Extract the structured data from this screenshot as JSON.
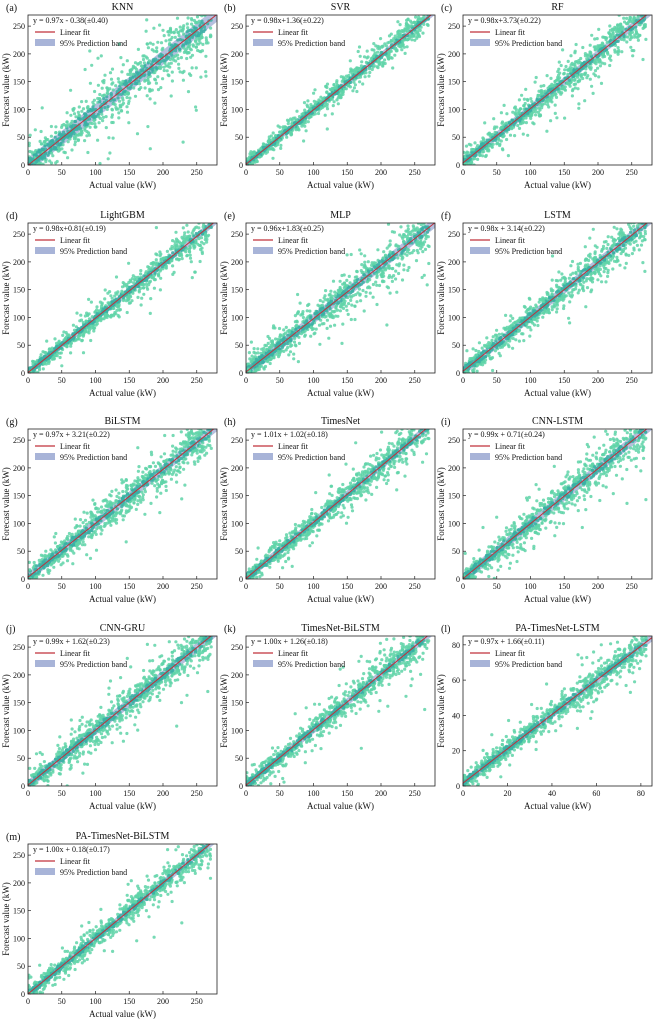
{
  "figure": {
    "colors": {
      "points": "#5fd3a8",
      "points_dense": "#3ab0a4",
      "fit_line": "#c0303a",
      "band": "#a8b4d8"
    },
    "legend_fit": "Linear fit",
    "legend_band": "95% Prediction band",
    "xlabel": "Actual value (kW)",
    "ylabel": "Forecast value (kW)"
  },
  "chart_data": [
    {
      "type": "scatter",
      "panel": "(a)",
      "title": "KNN",
      "equation": "y = 0.97x - 0.38(±0.40)",
      "slope": 0.97,
      "intercept": -0.38,
      "spread": 24,
      "xlim": [
        0,
        280
      ],
      "ylim": [
        0,
        270
      ],
      "xticks": [
        0,
        50,
        100,
        150,
        200,
        250
      ],
      "yticks": [
        0,
        50,
        100,
        150,
        200,
        250
      ],
      "xlabel": "Actual value (kW)",
      "ylabel": "Forecast value (kW)"
    },
    {
      "type": "scatter",
      "panel": "(b)",
      "title": "SVR",
      "equation": "y = 0.98x+1.36(±0.22)",
      "slope": 0.98,
      "intercept": 1.36,
      "spread": 10,
      "xlim": [
        0,
        280
      ],
      "ylim": [
        0,
        270
      ],
      "xticks": [
        0,
        50,
        100,
        150,
        200,
        250
      ],
      "yticks": [
        0,
        50,
        100,
        150,
        200,
        250
      ],
      "xlabel": "Actual value (kW)",
      "ylabel": "Forecast value (kW)"
    },
    {
      "type": "scatter",
      "panel": "(c)",
      "title": "RF",
      "equation": "y = 0.98x+3.73(±0.22)",
      "slope": 0.98,
      "intercept": 3.73,
      "spread": 14,
      "xlim": [
        0,
        280
      ],
      "ylim": [
        0,
        270
      ],
      "xticks": [
        0,
        50,
        100,
        150,
        200,
        250
      ],
      "yticks": [
        0,
        50,
        100,
        150,
        200,
        250
      ],
      "xlabel": "Actual value (kW)",
      "ylabel": "Forecast value (kW)"
    },
    {
      "type": "scatter",
      "panel": "(d)",
      "title": "LightGBM",
      "equation": "y = 0.98x+0.81(±0.19)",
      "slope": 0.98,
      "intercept": 0.81,
      "spread": 12,
      "xlim": [
        0,
        280
      ],
      "ylim": [
        0,
        270
      ],
      "xticks": [
        0,
        50,
        100,
        150,
        200,
        250
      ],
      "yticks": [
        0,
        50,
        100,
        150,
        200,
        250
      ],
      "xlabel": "Actual value (kW)",
      "ylabel": "Forecast value (kW)"
    },
    {
      "type": "scatter",
      "panel": "(e)",
      "title": "MLP",
      "equation": "y = 0.96x+1.83(±0.25)",
      "slope": 0.96,
      "intercept": 1.83,
      "spread": 17,
      "xlim": [
        0,
        280
      ],
      "ylim": [
        0,
        270
      ],
      "xticks": [
        0,
        50,
        100,
        150,
        200,
        250
      ],
      "yticks": [
        0,
        50,
        100,
        150,
        200,
        250
      ],
      "xlabel": "Actual value (kW)",
      "ylabel": "Forecast value (kW)"
    },
    {
      "type": "scatter",
      "panel": "(f)",
      "title": "LSTM",
      "equation": "y = 0.98x + 3.14(±0.22)",
      "slope": 0.98,
      "intercept": 3.14,
      "spread": 15,
      "xlim": [
        0,
        280
      ],
      "ylim": [
        0,
        270
      ],
      "xticks": [
        0,
        50,
        100,
        150,
        200,
        250
      ],
      "yticks": [
        0,
        50,
        100,
        150,
        200,
        250
      ],
      "xlabel": "Actual value (kW)",
      "ylabel": "Forecast value (kW)"
    },
    {
      "type": "scatter",
      "panel": "(g)",
      "title": "BiLSTM",
      "equation": "y = 0.97x + 3.21(±0.22)",
      "slope": 0.97,
      "intercept": 3.21,
      "spread": 16,
      "xlim": [
        0,
        280
      ],
      "ylim": [
        0,
        270
      ],
      "xticks": [
        0,
        50,
        100,
        150,
        200,
        250
      ],
      "yticks": [
        0,
        50,
        100,
        150,
        200,
        250
      ],
      "xlabel": "Actual value (kW)",
      "ylabel": "Forecast value (kW)"
    },
    {
      "type": "scatter",
      "panel": "(h)",
      "title": "TimesNet",
      "equation": "y = 1.01x + 1.02(±0.18)",
      "slope": 1.01,
      "intercept": 1.02,
      "spread": 13,
      "xlim": [
        0,
        280
      ],
      "ylim": [
        0,
        270
      ],
      "xticks": [
        0,
        50,
        100,
        150,
        200,
        250
      ],
      "yticks": [
        0,
        50,
        100,
        150,
        200,
        250
      ],
      "xlabel": "Actual value (kW)",
      "ylabel": "Forecast value (kW)"
    },
    {
      "type": "scatter",
      "panel": "(i)",
      "title": "CNN-LSTM",
      "equation": "y = 0.99x + 0.71(±0.24)",
      "slope": 0.99,
      "intercept": 0.71,
      "spread": 17,
      "xlim": [
        0,
        280
      ],
      "ylim": [
        0,
        270
      ],
      "xticks": [
        0,
        50,
        100,
        150,
        200,
        250
      ],
      "yticks": [
        0,
        50,
        100,
        150,
        200,
        250
      ],
      "xlabel": "Actual value (kW)",
      "ylabel": "Forecast value (kW)"
    },
    {
      "type": "scatter",
      "panel": "(j)",
      "title": "CNN-GRU",
      "equation": "y = 0.99x + 1.62(±0.23)",
      "slope": 0.99,
      "intercept": 1.62,
      "spread": 16,
      "xlim": [
        0,
        280
      ],
      "ylim": [
        0,
        270
      ],
      "xticks": [
        0,
        50,
        100,
        150,
        200,
        250
      ],
      "yticks": [
        0,
        50,
        100,
        150,
        200,
        250
      ],
      "xlabel": "Actual value (kW)",
      "ylabel": "Forecast value (kW)"
    },
    {
      "type": "scatter",
      "panel": "(k)",
      "title": "TimesNet-BiLSTM",
      "equation": "y = 1.00x + 1.26(±0.18)",
      "slope": 1.0,
      "intercept": 1.26,
      "spread": 13,
      "xlim": [
        0,
        280
      ],
      "ylim": [
        0,
        270
      ],
      "xticks": [
        0,
        50,
        100,
        150,
        200,
        250
      ],
      "yticks": [
        0,
        50,
        100,
        150,
        200,
        250
      ],
      "xlabel": "Actual value (kW)",
      "ylabel": "Forecast value (kW)"
    },
    {
      "type": "scatter",
      "panel": "(l)",
      "title": "PA-TimesNet-LSTM",
      "equation": "y = 0.97x + 1.66(±0.11)",
      "slope": 0.97,
      "intercept": 1.66,
      "spread": 4,
      "xlim": [
        0,
        85
      ],
      "ylim": [
        0,
        85
      ],
      "xticks": [
        0,
        20,
        40,
        60,
        80
      ],
      "yticks": [
        0,
        20,
        40,
        60,
        80
      ],
      "xlabel": "Actual value (kW)",
      "ylabel": "Forecast value (kW)"
    },
    {
      "type": "scatter",
      "panel": "(m)",
      "title": "PA-TimesNet-BiLSTM",
      "equation": "y = 1.00x + 0.18(±0.17)",
      "slope": 1.0,
      "intercept": 0.18,
      "spread": 12,
      "xlim": [
        0,
        280
      ],
      "ylim": [
        0,
        270
      ],
      "xticks": [
        0,
        50,
        100,
        150,
        200,
        250
      ],
      "yticks": [
        0,
        50,
        100,
        150,
        200,
        250
      ],
      "xlabel": "Actual value (kW)",
      "ylabel": "Forecast value (kW)"
    }
  ]
}
